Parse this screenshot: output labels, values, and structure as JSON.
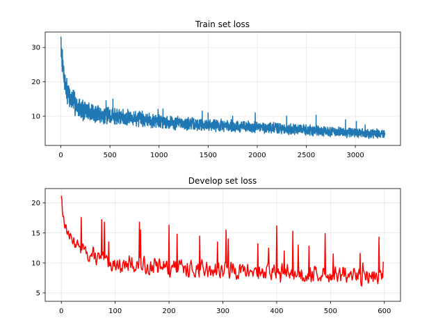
{
  "chart_data": [
    {
      "type": "line",
      "title": "Train set loss",
      "xlabel": "",
      "ylabel": "",
      "xlim": [
        -160,
        3460
      ],
      "ylim": [
        1.5,
        34.5
      ],
      "xticks": [
        0,
        500,
        1000,
        1500,
        2000,
        2500,
        3000
      ],
      "xtick_labels": [
        "0",
        "500",
        "1000",
        "1500",
        "2000",
        "2500",
        "3000"
      ],
      "yticks": [
        10,
        20,
        30
      ],
      "ytick_labels": [
        "10",
        "20",
        "30"
      ],
      "grid": true,
      "color": "#1f77b4",
      "series": [
        {
          "x_start": 0,
          "x_end": 3300,
          "trend": [
            [
              0,
              29
            ],
            [
              10,
              27
            ],
            [
              30,
              22
            ],
            [
              60,
              17
            ],
            [
              100,
              15
            ],
            [
              150,
              13.5
            ],
            [
              200,
              12
            ],
            [
              300,
              11
            ],
            [
              400,
              10.5
            ],
            [
              500,
              10
            ],
            [
              700,
              9.5
            ],
            [
              900,
              9
            ],
            [
              1000,
              8.5
            ],
            [
              1200,
              8
            ],
            [
              1500,
              7.5
            ],
            [
              2000,
              6.8
            ],
            [
              2500,
              6
            ],
            [
              3000,
              5
            ],
            [
              3300,
              4.8
            ]
          ],
          "noise": [
            [
              0,
              3
            ],
            [
              100,
              3
            ],
            [
              500,
              2.2
            ],
            [
              1000,
              1.8
            ],
            [
              2000,
              1.5
            ],
            [
              3300,
              1.2
            ]
          ],
          "spikes": [
            [
              0,
              32.5
            ],
            [
              1,
              33
            ],
            [
              2,
              31
            ],
            [
              5,
              28
            ],
            [
              12,
              27
            ],
            [
              30,
              24
            ],
            [
              60,
              21
            ],
            [
              140,
              17
            ],
            [
              190,
              15
            ],
            [
              460,
              14.5
            ],
            [
              530,
              15
            ],
            [
              990,
              12
            ],
            [
              1040,
              12.1
            ],
            [
              1440,
              11.5
            ],
            [
              1500,
              11
            ],
            [
              1750,
              10
            ],
            [
              1980,
              11
            ],
            [
              2300,
              10
            ],
            [
              2600,
              10.3
            ],
            [
              2900,
              9
            ],
            [
              3010,
              8.5
            ],
            [
              3100,
              7.5
            ]
          ]
        }
      ]
    },
    {
      "type": "line",
      "title": "Develop set loss",
      "xlabel": "",
      "ylabel": "",
      "xlim": [
        -30,
        630
      ],
      "ylim": [
        3.6,
        22.4
      ],
      "xticks": [
        0,
        100,
        200,
        300,
        400,
        500,
        600
      ],
      "xtick_labels": [
        "0",
        "100",
        "200",
        "300",
        "400",
        "500",
        "600"
      ],
      "yticks": [
        5,
        10,
        15,
        20
      ],
      "ytick_labels": [
        "5",
        "10",
        "15",
        "20"
      ],
      "grid": true,
      "color": "#ff0000",
      "series": [
        {
          "x_start": 0,
          "x_end": 598,
          "trend": [
            [
              0,
              20.5
            ],
            [
              3,
              18
            ],
            [
              8,
              16
            ],
            [
              15,
              14.5
            ],
            [
              30,
              13
            ],
            [
              50,
              11.5
            ],
            [
              80,
              10.3
            ],
            [
              100,
              9.8
            ],
            [
              150,
              9.5
            ],
            [
              200,
              9.2
            ],
            [
              300,
              8.8
            ],
            [
              400,
              8.4
            ],
            [
              500,
              8
            ],
            [
              598,
              7.6
            ]
          ],
          "noise": [
            [
              0,
              0.8
            ],
            [
              50,
              1.3
            ],
            [
              200,
              1.4
            ],
            [
              400,
              1.4
            ],
            [
              598,
              1.3
            ]
          ],
          "spikes": [
            [
              0,
              21.2
            ],
            [
              1,
              20.5
            ],
            [
              37,
              17.6
            ],
            [
              75,
              17.2
            ],
            [
              80,
              16.8
            ],
            [
              88,
              13.5
            ],
            [
              145,
              16.8
            ],
            [
              147,
              15.5
            ],
            [
              200,
              16.3
            ],
            [
              215,
              14.8
            ],
            [
              257,
              14.5
            ],
            [
              290,
              13.5
            ],
            [
              306,
              15.5
            ],
            [
              310,
              14
            ],
            [
              365,
              13.2
            ],
            [
              385,
              12.5
            ],
            [
              400,
              16.2
            ],
            [
              414,
              12
            ],
            [
              430,
              15.3
            ],
            [
              440,
              13
            ],
            [
              460,
              12.8
            ],
            [
              490,
              14.9
            ],
            [
              505,
              11.5
            ],
            [
              555,
              11.6
            ],
            [
              560,
              10
            ],
            [
              590,
              14.3
            ],
            [
              598,
              10.2
            ]
          ]
        }
      ]
    }
  ]
}
